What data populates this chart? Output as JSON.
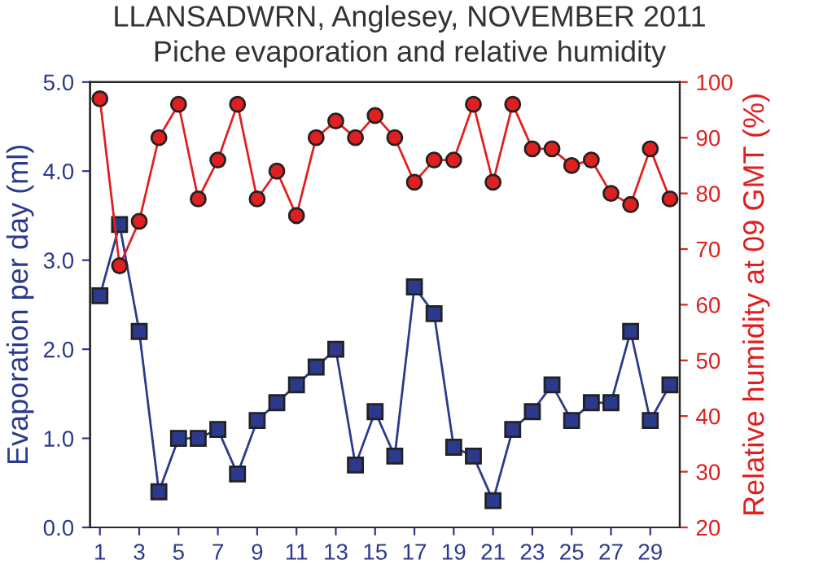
{
  "chart_data": {
    "type": "line",
    "title": "LLANSADWRN, Anglesey, NOVEMBER 2011",
    "subtitle": "Piche evaporation and relative humidity",
    "xlabel": null,
    "ylabel": "Evaporation per day (ml)",
    "y2label": "Relative humidity at 09 GMT (%)",
    "x": [
      1,
      2,
      3,
      4,
      5,
      6,
      7,
      8,
      9,
      10,
      11,
      12,
      13,
      14,
      15,
      16,
      17,
      18,
      19,
      20,
      21,
      22,
      23,
      24,
      25,
      26,
      27,
      28,
      29,
      30
    ],
    "series": [
      {
        "name": null,
        "color": "#2b3a8c",
        "marker": "square",
        "values": [
          2.6,
          3.4,
          2.2,
          0.4,
          1.0,
          1.0,
          1.1,
          0.6,
          1.2,
          1.4,
          1.6,
          1.8,
          2.0,
          0.7,
          1.3,
          0.8,
          2.7,
          2.4,
          0.9,
          0.8,
          0.3,
          1.1,
          1.3,
          1.6,
          1.2,
          1.4,
          1.4,
          2.2,
          1.2,
          1.6
        ]
      },
      {
        "name": null,
        "color": "#e02020",
        "marker": "circle",
        "axis": "y2",
        "values": [
          97,
          67,
          75,
          90,
          96,
          79,
          86,
          96,
          79,
          84,
          76,
          90,
          93,
          90,
          94,
          90,
          82,
          86,
          86,
          96,
          82,
          96,
          88,
          88,
          85,
          86,
          80,
          78,
          88,
          79
        ]
      }
    ],
    "xlim": [
      0.5,
      30.5
    ],
    "xticks": [
      1,
      3,
      5,
      7,
      9,
      11,
      13,
      15,
      17,
      19,
      21,
      23,
      25,
      27,
      29
    ],
    "ylim": [
      0,
      5
    ],
    "yticks": [
      {
        "value": 0,
        "label": "0.0"
      },
      {
        "value": 1,
        "label": "1.0"
      },
      {
        "value": 2,
        "label": "2.0"
      },
      {
        "value": 3,
        "label": "3.0"
      },
      {
        "value": 4,
        "label": "4.0"
      },
      {
        "value": 5,
        "label": "5.0"
      }
    ],
    "y2lim": [
      20,
      100
    ],
    "y2ticks": [
      20,
      30,
      40,
      50,
      60,
      70,
      80,
      90,
      100
    ],
    "grid": false,
    "legend": false
  }
}
